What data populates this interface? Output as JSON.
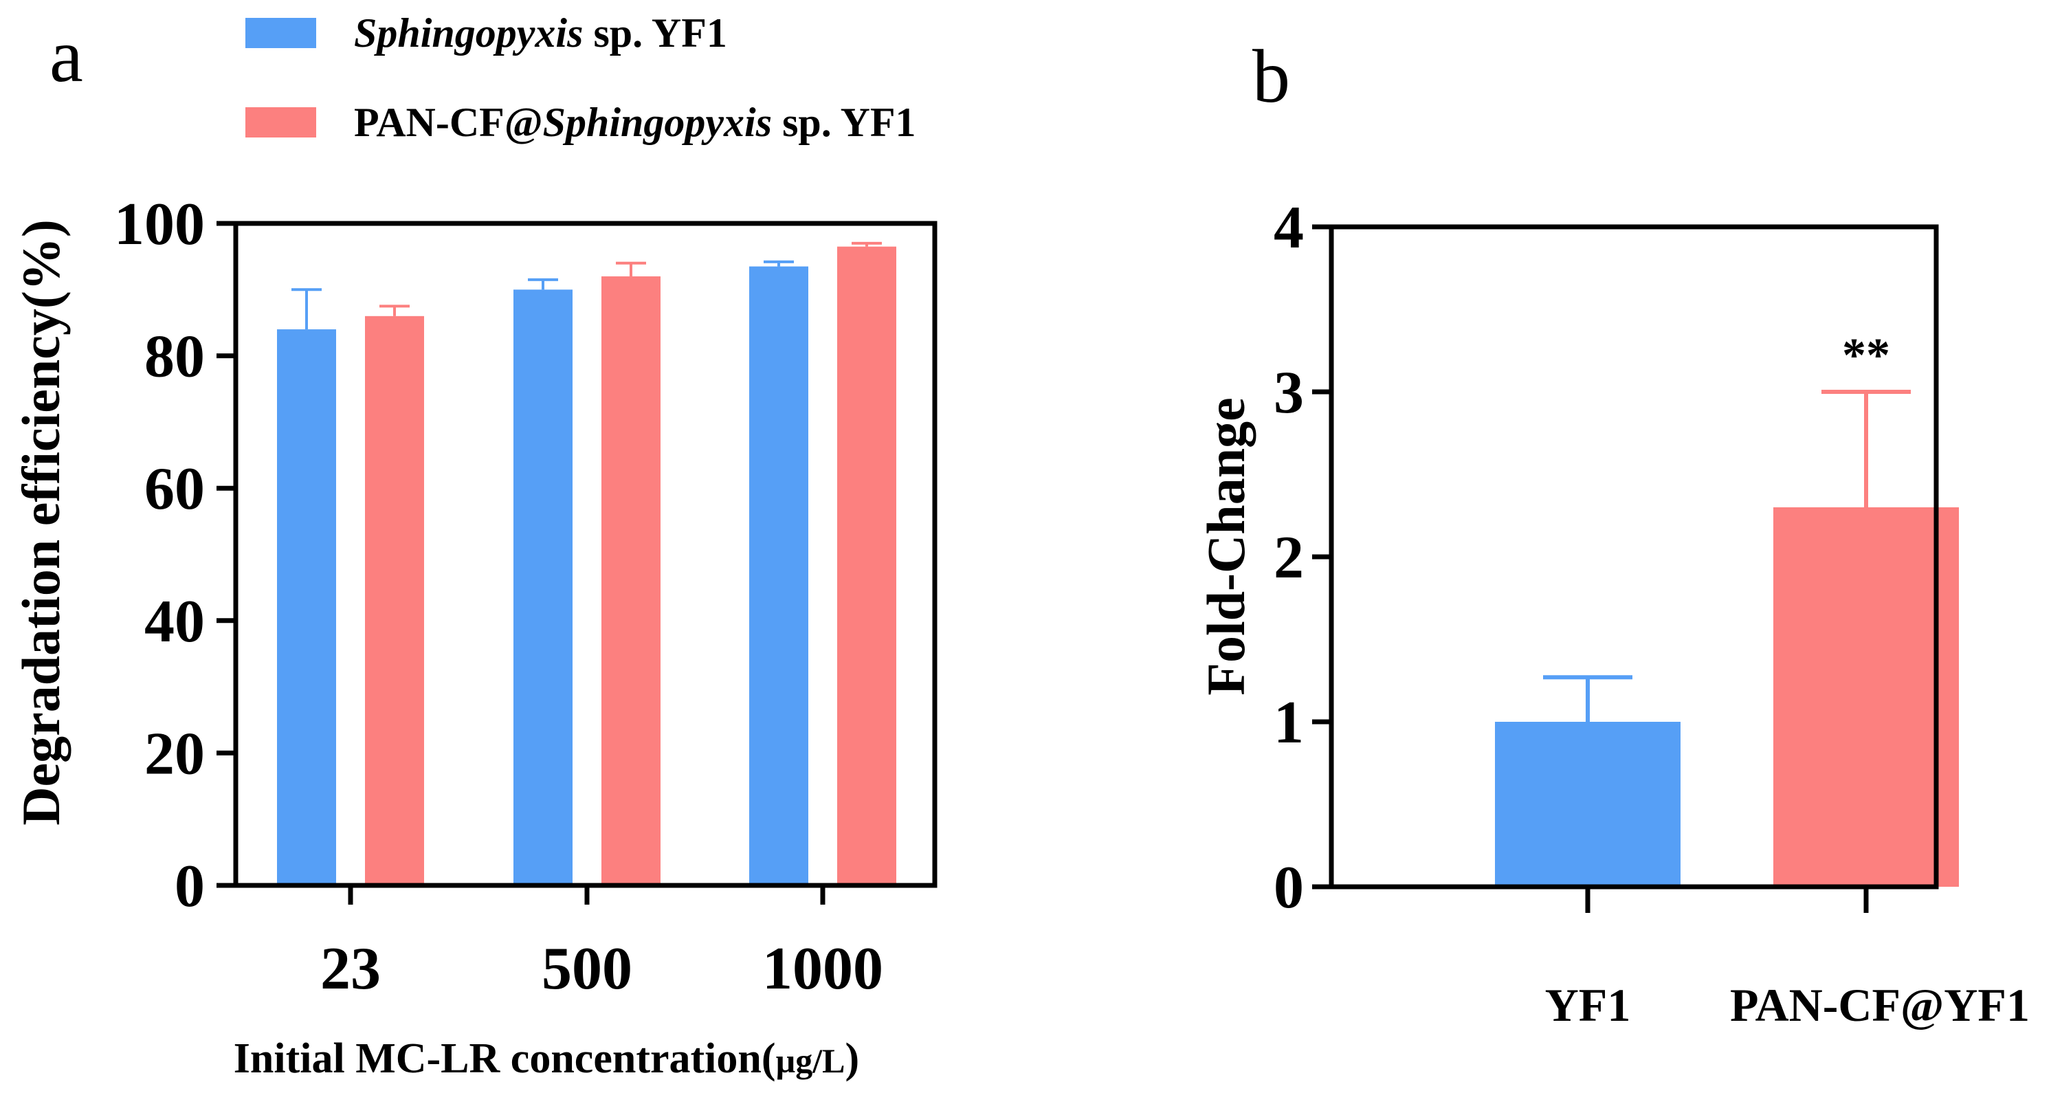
{
  "figure": {
    "panel_a_label": "a",
    "panel_b_label": "b"
  },
  "legend": [
    {
      "italic": "Sphingopyxis",
      "suffix": " sp. YF1",
      "prefix": "",
      "color": "#569ff6"
    },
    {
      "prefix": "PAN-CF@",
      "italic": "Sphingopyxis",
      "suffix": " sp. YF1",
      "color": "#fc807f"
    }
  ],
  "chart_data": [
    {
      "panel": "a",
      "type": "bar",
      "title": "",
      "xlabel": "Initial MC-LR concentration(µg/L)",
      "ylabel": "Degradation efficiency(%)",
      "ylim": [
        0,
        100
      ],
      "yticks": [
        "0",
        "20",
        "40",
        "60",
        "80",
        "100"
      ],
      "ytick_values": [
        0,
        20,
        40,
        60,
        80,
        100
      ],
      "categories": [
        "23",
        "500",
        "1000"
      ],
      "series": [
        {
          "name": "Sphingopyxis sp. YF1",
          "color": "#569ff6",
          "values": [
            84,
            90,
            93.5
          ],
          "errors": [
            6,
            1.5,
            0.7
          ]
        },
        {
          "name": "PAN-CF@Sphingopyxis sp. YF1",
          "color": "#fc807f",
          "values": [
            86,
            92,
            96.5
          ],
          "errors": [
            1.5,
            2,
            0.5
          ]
        }
      ]
    },
    {
      "panel": "b",
      "type": "bar",
      "title": "",
      "xlabel": "",
      "ylabel": "Fold-Change",
      "ylim": [
        0,
        4
      ],
      "yticks": [
        "0",
        "1",
        "2",
        "3",
        "4"
      ],
      "ytick_values": [
        0,
        1,
        2,
        3,
        4
      ],
      "categories": [
        "YF1",
        "PAN-CF@YF1"
      ],
      "values": [
        1.0,
        2.3
      ],
      "errors": [
        0.27,
        0.7
      ],
      "colors": [
        "#569ff6",
        "#fc807f"
      ],
      "annotations": [
        {
          "category": "PAN-CF@YF1",
          "text": "**"
        }
      ]
    }
  ]
}
